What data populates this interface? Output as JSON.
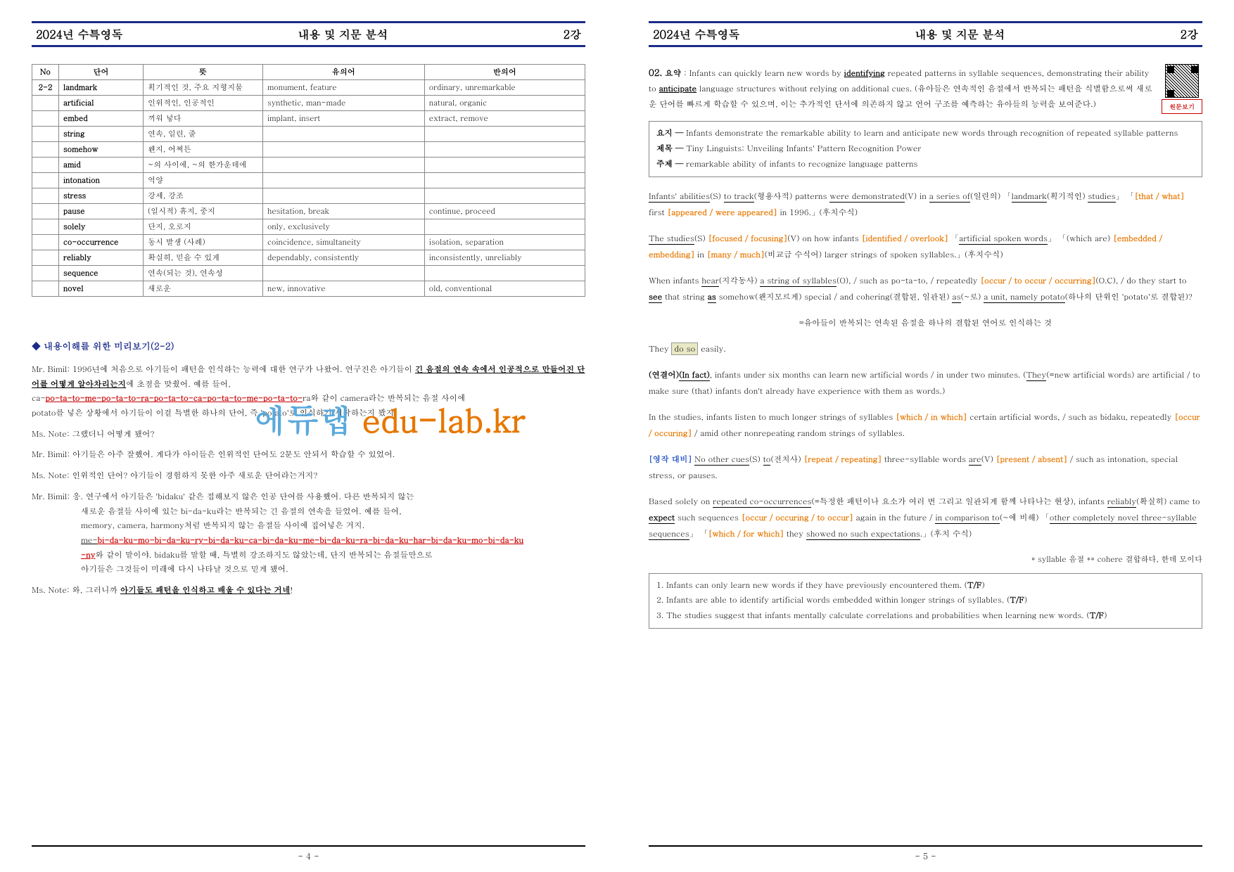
{
  "header": {
    "left": "2024년 수특영독",
    "center": "내용 및 지문 분석",
    "right": "2강"
  },
  "vocab": {
    "headers": [
      "No",
      "단어",
      "뜻",
      "유의어",
      "반의어"
    ],
    "rows": [
      [
        "2-2",
        "landmark",
        "획기적인 것, 주요 지형지물",
        "monument, feature",
        "ordinary, unremarkable"
      ],
      [
        "",
        "artificial",
        "인위적인, 인공적인",
        "synthetic, man-made",
        "natural, organic"
      ],
      [
        "",
        "embed",
        "끼워 넣다",
        "implant, insert",
        "extract, remove"
      ],
      [
        "",
        "string",
        "연속, 일련, 줄",
        "",
        ""
      ],
      [
        "",
        "somehow",
        "왠지, 어쩌튼",
        "",
        ""
      ],
      [
        "",
        "amid",
        "~의 사이에, ~의 한가운데에",
        "",
        ""
      ],
      [
        "",
        "intonation",
        "억양",
        "",
        ""
      ],
      [
        "",
        "stress",
        "강세, 강조",
        "",
        ""
      ],
      [
        "",
        "pause",
        "(일시적) 휴지, 중지",
        "hesitation, break",
        "continue, proceed"
      ],
      [
        "",
        "solely",
        "단지, 오로지",
        "only, exclusively",
        ""
      ],
      [
        "",
        "co-occurrence",
        "동시 발생 (사례)",
        "coincidence, simultaneity",
        "isolation, separation"
      ],
      [
        "",
        "reliably",
        "확실히, 믿을 수 있게",
        "dependably, consistently",
        "inconsistently, unreliably"
      ],
      [
        "",
        "sequence",
        "연속(되는 것), 연속성",
        "",
        ""
      ],
      [
        "",
        "novel",
        "새로운",
        "new, innovative",
        "old, conventional"
      ]
    ]
  },
  "preview_title": "◆ 내용이해를 위한 미리보기(2-2)",
  "dialogue": {
    "d1a": "Mr. Bimil: 1996년에 처음으로 아기들이 패턴을 인식하는 능력에 대한 연구가 나왔어. 연구진은 아기들이 ",
    "d1b": "긴 음절의 연속 속에서 인공적으로 만들어진 단어를 어떻게 알아차리는지",
    "d1c": "에 초점을 맞췄어. 예를 들어,",
    "d1d_pre": "ca-",
    "d1d_seq": "po-ta-to-me-po-ta-to-ra-po-ta-to-ca-po-ta-to-me-po-ta-to-",
    "d1d_post": "ra와 같이 camera라는 반복되는 음절 사이에",
    "d1e": "potato를 넣은 상황에서 아기들이 이걸 특별한 하나의 단어, 즉 'potato'로 인식하기 시작하는지 봤지.",
    "d2": "Ms. Note: 그랬더니 어떻게 됐어?",
    "d3": "Mr. Bimil: 아기들은 아주 잘했어. 게다가 아이들은 인위적인 단어도 2분도 안되서 학습할 수 있었어.",
    "d4": "Ms. Note: 인위적인 단어? 아기들이 경험하지 못한 아주 새로운 단어라는거지?",
    "d5a": "Mr. Bimil: 응. 연구에서 아기들은 'bidaku' 같은 접해보지 않은 인공 단어를 사용했어. 다른 반복되지 않는",
    "d5b": "새로운 음절들 사이에 있는 bi-da-ku라는 반복되는 긴 음절의 연속을 들었어. 예를 들어,",
    "d5c": "memory, camera, harmony처럼 반복되지 않는 음절들 사이에 집어넣은 거지.",
    "d5d_pre": "me-",
    "d5d_seq": "bi-da-ku-mo-bi-da-ku-ry-bi-da-ku-ca-bi-da-ku-me-bi-da-ku-ra-bi-da-ku-har-bi-da-ku-mo-bi-da-ku",
    "d5e_pre": "-ny",
    "d5e_post": "와 같이 말이야. bidaku를 말할 때, 특별히 강조하지도 않았는데, 단지 반복되는 음절들만으로",
    "d5f": "아기들은 그것들이 미래에 다시 나타날 것으로 믿게 됐어.",
    "d6a": "Ms. Note: 와, 그러니까 ",
    "d6b": "아기들도 패턴을 인식하고 배울 수 있다는 거네",
    "d6c": "!"
  },
  "watermark": {
    "part1": "에듀랩 ",
    "part2": "edu-lab.kr"
  },
  "qnum": "02.",
  "summary_label": "요약",
  "summary": {
    "s1a": " : Infants can quickly learn new words by ",
    "s1b": "identifying",
    "s1c": " repeated patterns in syllable sequences, demonstrating their ability to ",
    "s1d": "anticipate",
    "s1e": " language structures without relying on additional cues. (유아들은 연속적인 음절에서 반복되는 패턴을 식별함으로써 새로운 단어를 빠르게 학습할 수 있으며, 이는 추가적인 단서에 의존하지 않고 언어 구조를 예측하는 유아들의 능력을 보여준다.)"
  },
  "qr_label": "원문보기",
  "gist": {
    "g1_label": "요지 — ",
    "g1": "Infants demonstrate the remarkable ability to learn and anticipate new words through recognition of repeated syllable patterns",
    "g2_label": "제목 — ",
    "g2": "Tiny Linguists: Unveiling Infants' Pattern Recognition Power",
    "g3_label": "주제 — ",
    "g3": "remarkable ability of infants to recognize language patterns"
  },
  "analysis": {
    "p1": {
      "a": "Infants' abilities",
      "b": "(S) ",
      "c": "to track",
      "d": "(형용사적) patterns ",
      "e": "were demonstrated",
      "f": "(V) in ",
      "g": "a series of",
      "h": "(일련의) 「",
      "i": "landmark",
      "j": "(획기적인) ",
      "k": "studies",
      "l": "」 「",
      "m": "[that / what]",
      "n": " first ",
      "o": "[appeared / were appeared]",
      "p": " in 1996.」(후치수식)"
    },
    "p2": {
      "a": "The studies",
      "b": "(S) ",
      "c": "[focused / focusing]",
      "d": "(V) on how infants ",
      "e": "[identified / overlook]",
      "f": " 「",
      "g": "artificial spoken words",
      "h": "」 「(which are) ",
      "i": "[embedded / embedding]",
      "j": " in ",
      "k": "[many / much]",
      "l": "(비교급 수식어) larger strings of spoken syllables.」(후치수식)"
    },
    "p3": {
      "a": "When infants ",
      "b": "hear",
      "c": "(지각동사) ",
      "d": "a string of syllables",
      "e": "(O), / such as po-ta-to, / repeatedly ",
      "f": "[occur / to occur / occurring]",
      "g": "(O.C), / do they start to ",
      "h": "see",
      "i": " that string ",
      "j": "as",
      "k": " somehow(왠지모르게) special / and cohering(결합된, 일관된) ",
      "l": "as",
      "m": "(~로) ",
      "n": "a unit, namely potato",
      "o": "(하나의 단위인 'potato'로 결합된)?"
    },
    "p3_trans": "=유아들이 반복되는 연속된 음절을 하나의 결합된 연어로 인식하는 것",
    "p3_ans_a": "They ",
    "p3_ans_b": "do so",
    "p3_ans_c": " easily.",
    "p4": {
      "a": "(연결어)",
      "b": "(In fact)",
      "c": ", infants under six months can learn new artificial words / in under two minutes. (",
      "d": "They",
      "e": "(=new artificial words) are artificial / to make sure (that) infants don't already have experience with them as words.)"
    },
    "p5": {
      "a": "In the studies, infants listen to much longer strings of syllables ",
      "b": "[which / in which]",
      "c": " certain artificial words, / such as bidaku, repeatedly ",
      "d": "[occur / occuring]",
      "e": " / amid other nonrepeating random strings of syllables."
    },
    "p6": {
      "a": "[영작 대비]",
      "b": " ",
      "c": "No other cues",
      "d": "(S) ",
      "e": "to",
      "f": "(전치사) ",
      "g": "[repeat / repeating]",
      "h": " three-syllable words ",
      "i": "are",
      "j": "(V) ",
      "k": "[present / absent]",
      "l": " / such as intonation, special stress, or pauses."
    },
    "p7": {
      "a": "Based solely on ",
      "b": "repeated co-occurrences",
      "c": "(=특정한 패턴이나 요소가 여러 번 그리고 일관되게 함께 나타나는 현상), infants ",
      "d": "reliably",
      "e": "(확실히) came to ",
      "f": "expect",
      "g": " such sequences ",
      "h": "[occur / occuring / to occur]",
      "i": " again in the future / ",
      "j": "in comparison to",
      "k": "(~에 비해) 「",
      "l": "other completely novel three-syllable sequences",
      "m": "」 「",
      "n": "[which / for which]",
      "o": " they ",
      "p": "showed no such expectations",
      "q": ".」(후치 수식)"
    },
    "note": "* syllable 음절 ** cohere 결합하다, 한데 모이다"
  },
  "questions": {
    "q1a": "1. Infants can only learn new words if they have previously encountered them. (",
    "q1b": "T/F",
    "q2a": "2. Infants are able to identify artificial words embedded within longer strings of syllables. (",
    "q2b": "T/F",
    "q3a": "3. The studies suggest that infants mentally calculate correlations and probabilities when learning new words. (",
    "q3b": "T/F"
  },
  "page_left": "- 4 -",
  "page_right": "- 5 -"
}
